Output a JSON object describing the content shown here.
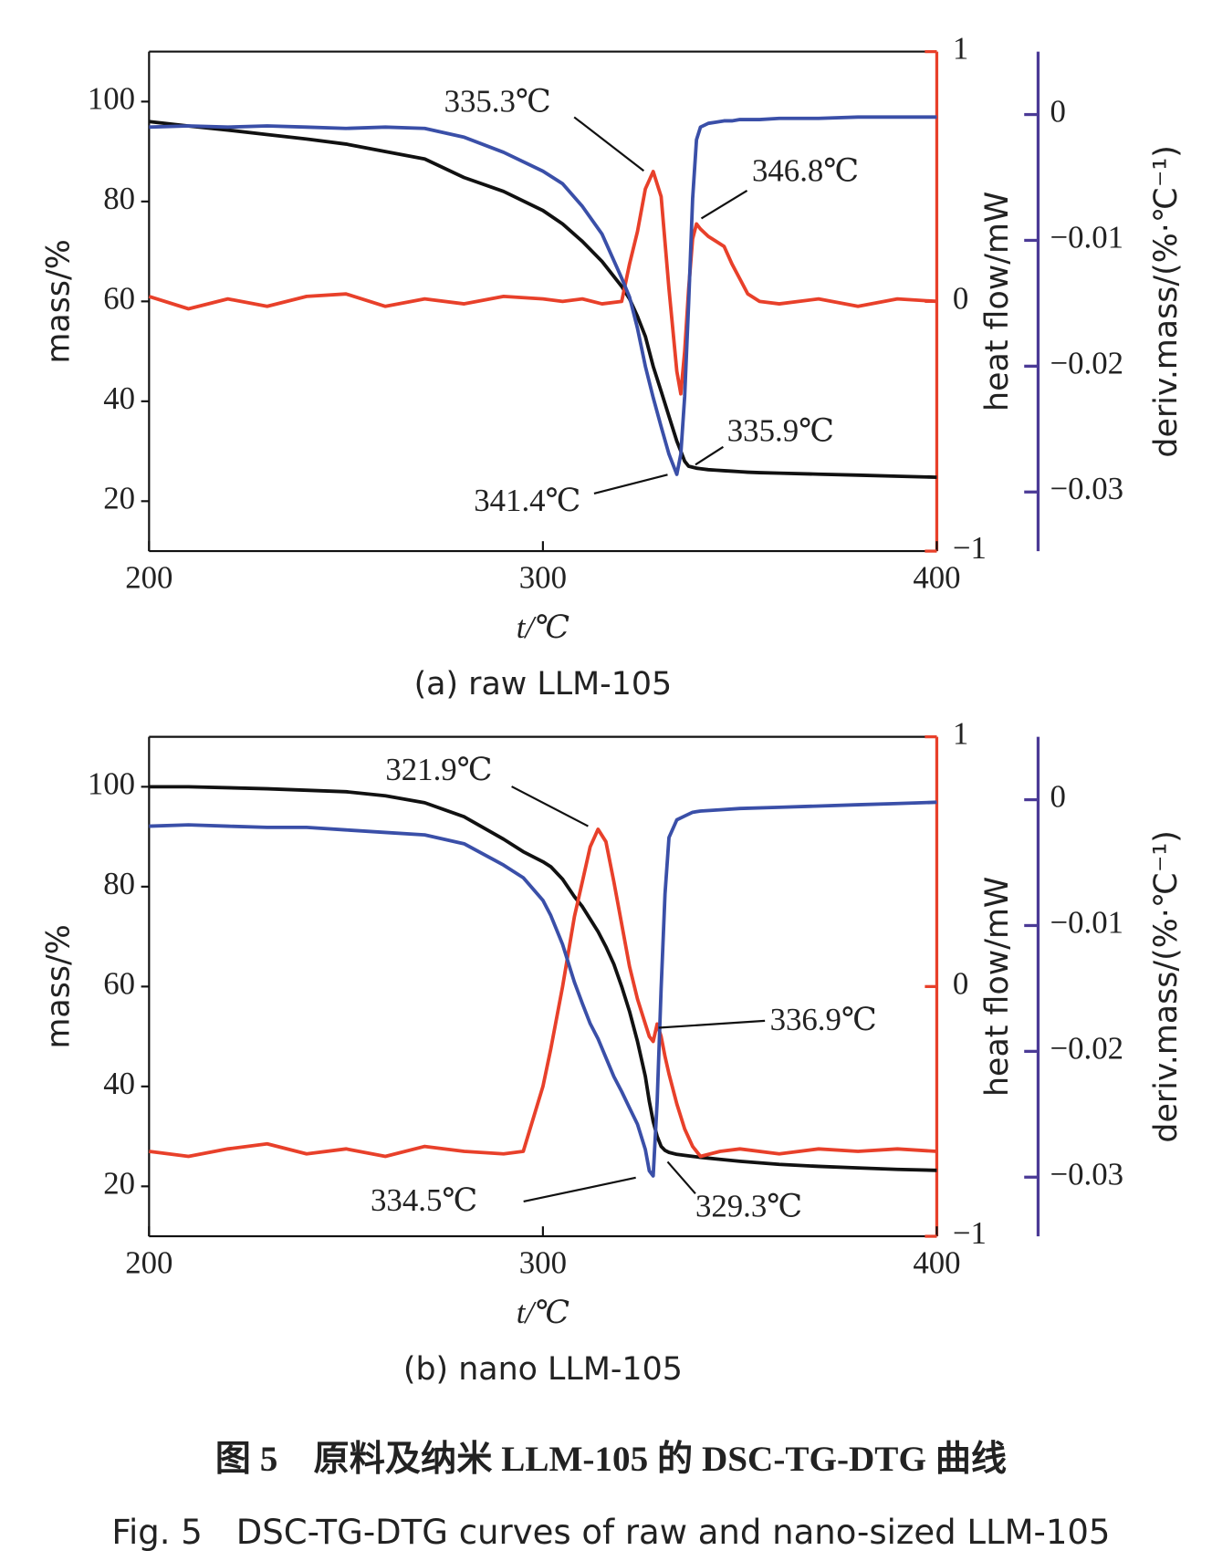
{
  "chart_data": [
    {
      "type": "line",
      "subtitle": "(a) raw LLM-105",
      "xlabel": "t/℃",
      "ylabel": "mass/%",
      "y2label": "heat flow/mW",
      "y3label": "deriv.mass/(%·℃⁻¹)",
      "xlim": [
        200,
        400
      ],
      "xticks": [
        200,
        300,
        400
      ],
      "ylim": [
        10,
        110
      ],
      "yticks": [
        20,
        40,
        60,
        80,
        100
      ],
      "y2lim": [
        -1,
        1
      ],
      "y2ticks": [
        {
          "value": -1,
          "label": "−1"
        },
        0,
        1
      ],
      "y3lim": [
        -0.0347,
        0.005
      ],
      "y3ticks": [
        {
          "value": -0.03,
          "label": "−0.03"
        },
        {
          "value": -0.02,
          "label": "−0.02"
        },
        {
          "value": -0.01,
          "label": "−0.01"
        },
        0
      ],
      "x": [
        200,
        210,
        220,
        230,
        240,
        250,
        260,
        270,
        280,
        290,
        300,
        305,
        310,
        315,
        320,
        322,
        324,
        326,
        328,
        330,
        332,
        334,
        335,
        336,
        337,
        338,
        339,
        340,
        342,
        344,
        346,
        348,
        350,
        352,
        355,
        360,
        370,
        380,
        390,
        400
      ],
      "series": [
        {
          "color": "#111111",
          "axis": "y",
          "values": [
            96,
            95.1,
            94.3,
            93.4,
            92.5,
            91.5,
            90,
            88.5,
            84.8,
            82,
            78.2,
            75.5,
            72,
            68,
            63,
            60.5,
            57,
            53,
            47,
            42,
            37,
            32,
            30,
            28,
            27,
            26.8,
            26.6,
            26.5,
            26.3,
            26.2,
            26.1,
            26,
            25.9,
            25.8,
            25.7,
            25.6,
            25.4,
            25.2,
            25,
            24.8
          ]
        },
        {
          "color": "#e8402a",
          "axis": "y2",
          "values": [
            0.02,
            -0.03,
            0.01,
            -0.02,
            0.02,
            0.03,
            -0.02,
            0.01,
            -0.01,
            0.02,
            0.01,
            0,
            0.01,
            -0.01,
            0,
            0.15,
            0.28,
            0.45,
            0.52,
            0.42,
            0.05,
            -0.28,
            -0.37,
            -0.2,
            0.05,
            0.25,
            0.31,
            0.29,
            0.26,
            0.24,
            0.22,
            0.15,
            0.09,
            0.03,
            0,
            -0.01,
            0.01,
            -0.02,
            0.01,
            0
          ]
        },
        {
          "color": "#3a4fa8",
          "axis": "y3",
          "values": [
            -0.001,
            -0.0009,
            -0.001,
            -0.0009,
            -0.001,
            -0.0011,
            -0.001,
            -0.0011,
            -0.0018,
            -0.003,
            -0.0045,
            -0.0055,
            -0.0073,
            -0.0095,
            -0.013,
            -0.0145,
            -0.017,
            -0.02,
            -0.0225,
            -0.0248,
            -0.027,
            -0.0286,
            -0.027,
            -0.0224,
            -0.015,
            -0.0067,
            -0.002,
            -0.001,
            -0.0007,
            -0.0006,
            -0.0005,
            -0.0005,
            -0.0004,
            -0.0004,
            -0.0004,
            -0.0003,
            -0.0003,
            -0.0002,
            -0.0002,
            -0.0002
          ]
        }
      ],
      "annotations": [
        "335.3℃",
        "346.8℃",
        "335.9℃",
        "341.4℃"
      ]
    },
    {
      "type": "line",
      "subtitle": "(b) nano LLM-105",
      "xlabel": "t/℃",
      "ylabel": "mass/%",
      "y2label": "heat flow/mW",
      "y3label": "deriv.mass/(%·℃⁻¹)",
      "xlim": [
        200,
        400
      ],
      "xticks": [
        200,
        300,
        400
      ],
      "ylim": [
        10,
        110
      ],
      "yticks": [
        20,
        40,
        60,
        80,
        100
      ],
      "y2lim": [
        -1,
        1
      ],
      "y2ticks": [
        {
          "value": -1,
          "label": "−1"
        },
        0,
        1
      ],
      "y3lim": [
        -0.0347,
        0.005
      ],
      "y3ticks": [
        {
          "value": -0.03,
          "label": "−0.03"
        },
        {
          "value": -0.02,
          "label": "−0.02"
        },
        {
          "value": -0.01,
          "label": "−0.01"
        },
        0
      ],
      "x": [
        200,
        210,
        220,
        230,
        240,
        250,
        260,
        270,
        280,
        290,
        295,
        300,
        302,
        305,
        308,
        310,
        312,
        314,
        316,
        318,
        320,
        322,
        324,
        326,
        327,
        328,
        329,
        330,
        331,
        332,
        334,
        336,
        338,
        340,
        345,
        350,
        360,
        370,
        380,
        390,
        400
      ],
      "series": [
        {
          "color": "#111111",
          "axis": "y",
          "values": [
            100,
            100,
            99.8,
            99.6,
            99.3,
            99,
            98.2,
            96.8,
            94,
            89.5,
            87,
            85,
            84,
            81.5,
            78,
            76,
            73.5,
            71,
            68,
            64.5,
            60,
            55,
            49,
            42,
            37,
            33,
            30,
            28,
            27.2,
            26.8,
            26.4,
            26.2,
            26,
            25.8,
            25.4,
            25,
            24.4,
            24,
            23.7,
            23.4,
            23.2
          ]
        },
        {
          "color": "#e8402a",
          "axis": "y2",
          "values": [
            -0.66,
            -0.68,
            -0.65,
            -0.63,
            -0.67,
            -0.65,
            -0.68,
            -0.64,
            -0.66,
            -0.67,
            -0.66,
            -0.4,
            -0.25,
            0,
            0.28,
            0.42,
            0.56,
            0.63,
            0.58,
            0.42,
            0.25,
            0.08,
            -0.05,
            -0.15,
            -0.2,
            -0.22,
            -0.15,
            -0.2,
            -0.28,
            -0.35,
            -0.47,
            -0.57,
            -0.64,
            -0.68,
            -0.66,
            -0.65,
            -0.67,
            -0.65,
            -0.66,
            -0.65,
            -0.66
          ]
        },
        {
          "color": "#3a4fa8",
          "axis": "y3",
          "values": [
            -0.0021,
            -0.002,
            -0.0021,
            -0.0022,
            -0.0022,
            -0.0024,
            -0.0026,
            -0.0028,
            -0.0035,
            -0.0052,
            -0.0062,
            -0.008,
            -0.0092,
            -0.0115,
            -0.0145,
            -0.0162,
            -0.0178,
            -0.019,
            -0.0205,
            -0.022,
            -0.0232,
            -0.0245,
            -0.0258,
            -0.0278,
            -0.0295,
            -0.0299,
            -0.024,
            -0.015,
            -0.0075,
            -0.003,
            -0.0016,
            -0.0013,
            -0.001,
            -0.0009,
            -0.0008,
            -0.0007,
            -0.0006,
            -0.0005,
            -0.0004,
            -0.0003,
            -0.0002
          ]
        }
      ],
      "annotations": [
        "321.9℃",
        "336.9℃",
        "334.5℃",
        "329.3℃"
      ]
    }
  ],
  "caption_cn": "图 5　原料及纳米 LLM-105 的 DSC-TG-DTG 曲线",
  "caption_en": "Fig. 5　DSC-TG-DTG curves of raw and nano-sized LLM-105"
}
